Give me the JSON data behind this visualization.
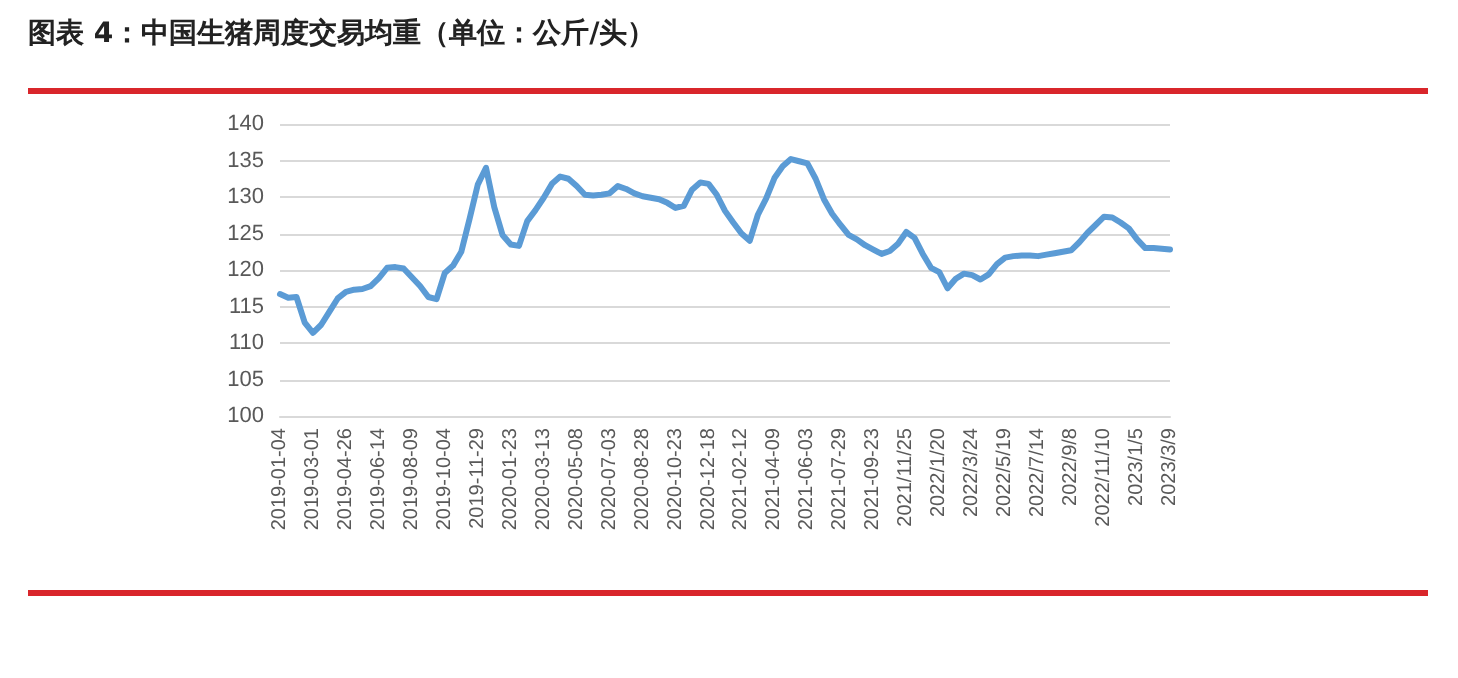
{
  "chart_data": {
    "type": "line",
    "title": "图表 4：中国生猪周度交易均重（单位：公斤/头）",
    "categories": [
      "2019-01-04",
      null,
      null,
      null,
      "2019-03-01",
      null,
      null,
      null,
      "2019-04-26",
      null,
      null,
      null,
      "2019-06-14",
      null,
      null,
      null,
      "2019-08-09",
      null,
      null,
      null,
      "2019-10-04",
      null,
      null,
      null,
      "2019-11-29",
      null,
      null,
      null,
      "2020-01-23",
      null,
      null,
      null,
      "2020-03-13",
      null,
      null,
      null,
      "2020-05-08",
      null,
      null,
      null,
      "2020-07-03",
      null,
      null,
      null,
      "2020-08-28",
      null,
      null,
      null,
      "2020-10-23",
      null,
      null,
      null,
      "2020-12-18",
      null,
      null,
      null,
      "2021-02-12",
      null,
      null,
      null,
      "2021-04-09",
      null,
      null,
      null,
      "2021-06-03",
      null,
      null,
      null,
      "2021-07-29",
      null,
      null,
      null,
      "2021-09-23",
      null,
      null,
      null,
      "2021/11/25",
      null,
      null,
      null,
      "2022/1/20",
      null,
      null,
      null,
      "2022/3/24",
      null,
      null,
      null,
      "2022/5/19",
      null,
      null,
      null,
      "2022/7/14",
      null,
      null,
      null,
      "2022/9/8",
      null,
      null,
      null,
      "2022/11/10",
      null,
      null,
      null,
      "2023/1/5",
      null,
      null,
      null,
      "2023/3/9"
    ],
    "series": [
      {
        "color": "#5b9bd5",
        "values": [
          116.7,
          116.2,
          116.3,
          112.8,
          111.4,
          112.5,
          114.3,
          116.1,
          117.0,
          117.3,
          117.4,
          117.8,
          118.9,
          120.3,
          120.4,
          120.2,
          119.0,
          117.8,
          116.3,
          116.0,
          119.6,
          120.6,
          122.5,
          127.0,
          131.7,
          134.0,
          128.6,
          124.8,
          123.5,
          123.3,
          126.7,
          128.2,
          129.9,
          131.8,
          132.8,
          132.5,
          131.5,
          130.3,
          130.2,
          130.3,
          130.5,
          131.5,
          131.1,
          130.5,
          130.1,
          129.9,
          129.7,
          129.2,
          128.5,
          128.8,
          131.0,
          132.0,
          131.8,
          130.3,
          128.1,
          126.5,
          125.0,
          124.0,
          127.6,
          129.8,
          132.6,
          134.2,
          135.2,
          134.9,
          134.6,
          132.5,
          129.7,
          127.7,
          126.2,
          124.8,
          124.2,
          123.4,
          122.8,
          122.2,
          122.6,
          123.6,
          125.2,
          124.4,
          122.2,
          120.3,
          119.7,
          117.5,
          118.8,
          119.5,
          119.3,
          118.7,
          119.4,
          120.8,
          121.7,
          121.9,
          122.0,
          122.0,
          121.9,
          122.1,
          122.3,
          122.5,
          122.7,
          123.8,
          125.1,
          126.2,
          127.3,
          127.2,
          126.5,
          125.7,
          124.2,
          123.0,
          123.0,
          122.9,
          122.8
        ]
      }
    ],
    "ylim": [
      100,
      140
    ],
    "yticks": [
      100,
      105,
      110,
      115,
      120,
      125,
      130,
      135,
      140
    ],
    "grid": "y"
  }
}
